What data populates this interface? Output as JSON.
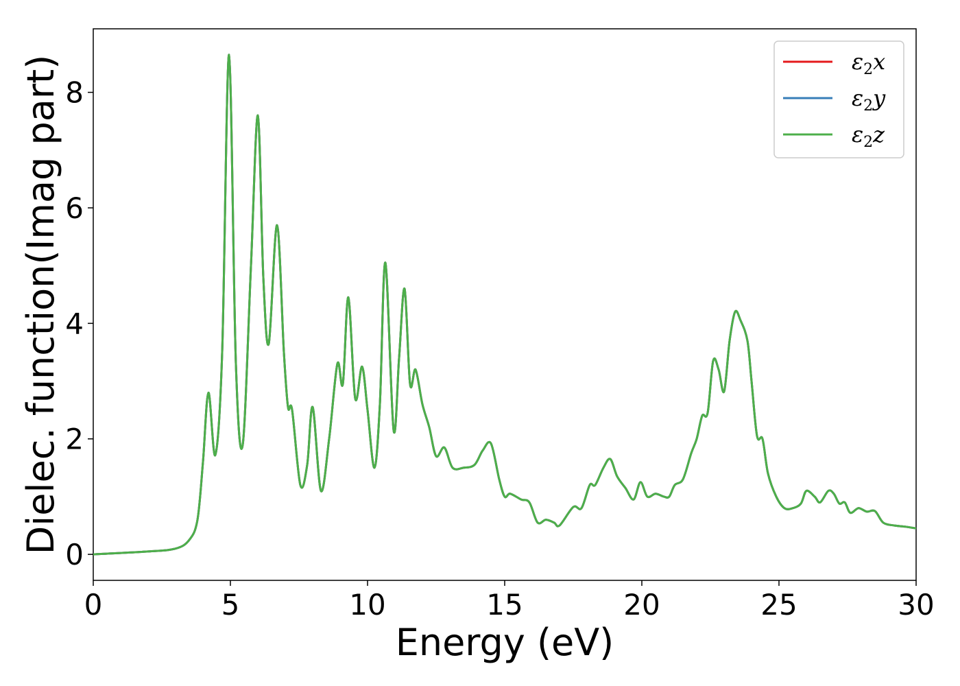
{
  "chart_data": {
    "type": "line",
    "title": "",
    "xlabel": "Energy (eV)",
    "ylabel": "Dielec. function(Imag part)",
    "xlim": [
      0,
      30
    ],
    "ylim": [
      -0.45,
      9.1
    ],
    "xticks": [
      "0",
      "5",
      "10",
      "15",
      "20",
      "25",
      "30"
    ],
    "yticks": [
      "0",
      "2",
      "4",
      "6",
      "8"
    ],
    "grid": false,
    "legend_position": "top-right",
    "series": [
      {
        "name": "ε₂x",
        "legend_main": "ε",
        "legend_sub": "2",
        "legend_suffix": "x",
        "color": "#e41a1c",
        "x": [
          0,
          2,
          3,
          3.5,
          3.8,
          4.0,
          4.2,
          4.45,
          4.7,
          4.95,
          5.2,
          5.45,
          5.75,
          6.0,
          6.2,
          6.4,
          6.7,
          6.95,
          7.1,
          7.25,
          7.55,
          7.8,
          8.0,
          8.3,
          8.6,
          8.9,
          9.1,
          9.3,
          9.55,
          9.8,
          10.0,
          10.25,
          10.45,
          10.65,
          10.95,
          11.15,
          11.35,
          11.55,
          11.75,
          12.0,
          12.25,
          12.5,
          12.8,
          13.1,
          13.5,
          13.9,
          14.2,
          14.5,
          14.8,
          15.0,
          15.2,
          15.6,
          15.9,
          16.2,
          16.5,
          16.8,
          17.0,
          17.5,
          17.8,
          18.1,
          18.3,
          18.6,
          18.85,
          19.1,
          19.4,
          19.7,
          19.95,
          20.2,
          20.5,
          20.8,
          21.0,
          21.2,
          21.5,
          21.8,
          22.0,
          22.2,
          22.4,
          22.6,
          22.8,
          23.0,
          23.2,
          23.4,
          23.6,
          23.85,
          24.0,
          24.2,
          24.4,
          24.6,
          24.9,
          25.2,
          25.5,
          25.8,
          26.0,
          26.3,
          26.5,
          26.8,
          27.0,
          27.2,
          27.4,
          27.6,
          27.9,
          28.2,
          28.5,
          28.8,
          29.2,
          29.6,
          30.0
        ],
        "values": [
          0.0,
          0.05,
          0.1,
          0.25,
          0.6,
          1.6,
          2.8,
          1.72,
          3.5,
          8.65,
          3.3,
          1.9,
          5.0,
          7.6,
          4.8,
          3.65,
          5.7,
          3.5,
          2.55,
          2.5,
          1.2,
          1.55,
          2.55,
          1.1,
          2.0,
          3.3,
          2.95,
          4.45,
          2.7,
          3.25,
          2.5,
          1.5,
          2.6,
          5.05,
          2.15,
          3.4,
          4.6,
          2.95,
          3.2,
          2.6,
          2.2,
          1.7,
          1.85,
          1.5,
          1.5,
          1.55,
          1.8,
          1.92,
          1.3,
          1.0,
          1.05,
          0.95,
          0.9,
          0.55,
          0.6,
          0.55,
          0.5,
          0.82,
          0.8,
          1.2,
          1.2,
          1.5,
          1.65,
          1.35,
          1.15,
          0.95,
          1.25,
          1.0,
          1.05,
          1.0,
          1.0,
          1.2,
          1.3,
          1.75,
          2.0,
          2.4,
          2.45,
          3.35,
          3.2,
          2.82,
          3.7,
          4.2,
          4.05,
          3.7,
          3.0,
          2.05,
          2.0,
          1.4,
          1.0,
          0.8,
          0.8,
          0.88,
          1.1,
          1.0,
          0.9,
          1.1,
          1.05,
          0.88,
          0.9,
          0.72,
          0.8,
          0.74,
          0.75,
          0.55,
          0.5,
          0.48,
          0.45
        ]
      },
      {
        "name": "ε₂y",
        "legend_main": "ε",
        "legend_sub": "2",
        "legend_suffix": "y",
        "color": "#377eb8"
      },
      {
        "name": "ε₂z",
        "legend_main": "ε",
        "legend_sub": "2",
        "legend_suffix": "z",
        "color": "#4daf4a"
      }
    ]
  }
}
